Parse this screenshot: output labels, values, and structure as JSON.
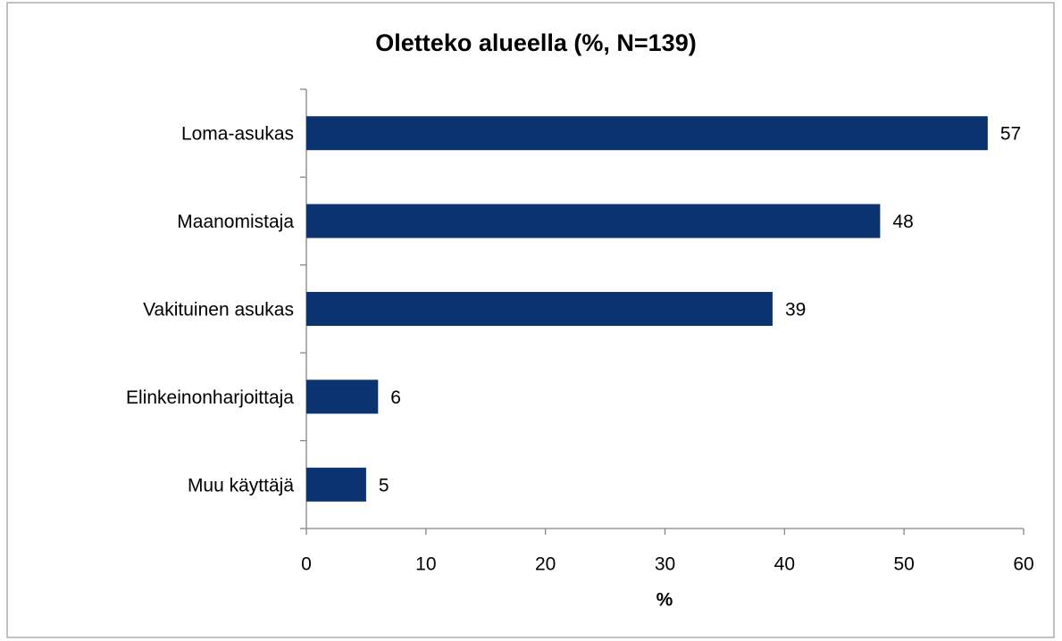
{
  "chart_data": {
    "type": "bar",
    "orientation": "horizontal",
    "title": "Oletteko alueella (%, N=139)",
    "categories": [
      "Loma-asukas",
      "Maanomistaja",
      "Vakituinen asukas",
      "Elinkeinonharjoittaja",
      "Muu käyttäjä"
    ],
    "values": [
      57,
      48,
      39,
      6,
      5
    ],
    "color": "#0a3370",
    "xlabel": "%",
    "xlim": [
      0,
      60
    ],
    "xticks": [
      0,
      10,
      20,
      30,
      40,
      50,
      60
    ],
    "grid": false
  }
}
